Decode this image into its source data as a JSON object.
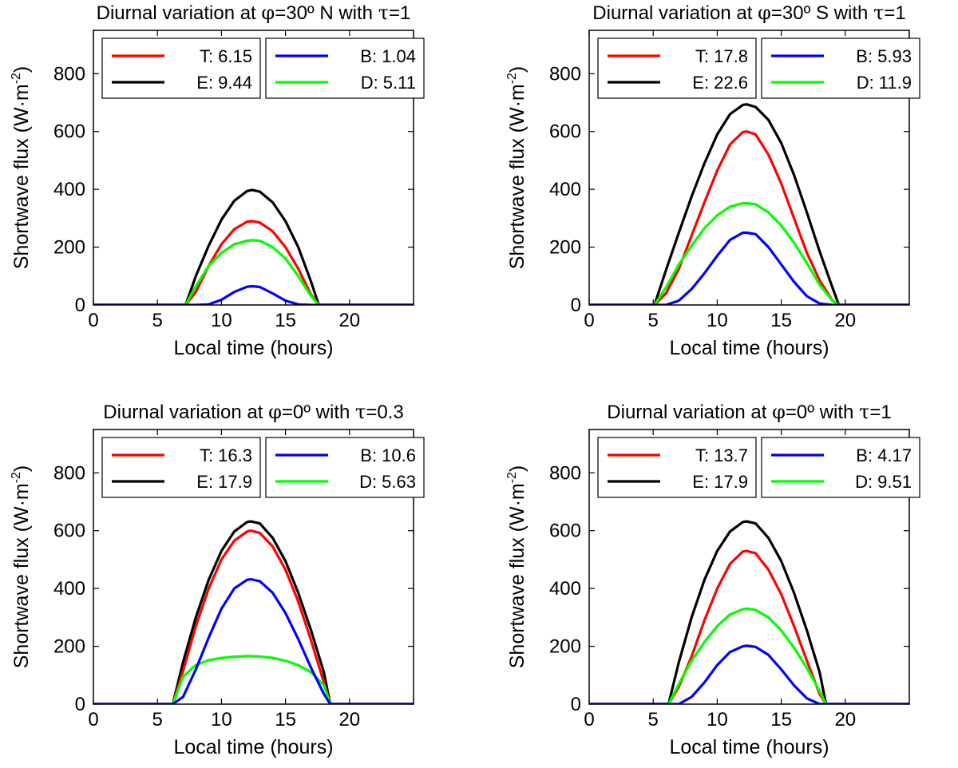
{
  "figure": {
    "background": "#ffffff"
  },
  "chart_data": [
    {
      "type": "line",
      "title": {
        "pre": "Diurnal variation at ",
        "phi": "φ",
        "mid": "=30º  N with ",
        "tau": "τ",
        "post": "=1"
      },
      "xlabel": "Local time (hours)",
      "ylabel": {
        "main": "Shortwave flux (W·m",
        "sup": "-2",
        "close": ")"
      },
      "xlim": [
        0,
        25
      ],
      "ylim": [
        0,
        950
      ],
      "xticks": [
        0,
        5,
        10,
        15,
        20
      ],
      "yticks": [
        0,
        200,
        400,
        600,
        800
      ],
      "x": [
        7.2,
        8,
        9,
        10,
        11,
        12,
        12.4,
        13,
        14,
        15,
        16,
        17,
        17.6
      ],
      "series": [
        {
          "name": "T",
          "legend": "T: 6.15",
          "color": "#ff0000",
          "values": [
            0,
            45,
            135,
            210,
            262,
            288,
            290,
            285,
            255,
            200,
            125,
            35,
            0
          ]
        },
        {
          "name": "E",
          "legend": "E: 9.44",
          "color": "#000000",
          "values": [
            0,
            100,
            205,
            295,
            360,
            394,
            398,
            392,
            355,
            290,
            200,
            80,
            0
          ]
        },
        {
          "name": "B",
          "legend": "B: 1.04",
          "color": "#0000ff",
          "values": [
            0,
            0,
            2,
            18,
            45,
            63,
            65,
            62,
            40,
            15,
            2,
            0,
            0
          ]
        },
        {
          "name": "D",
          "legend": "D: 5.11",
          "color": "#00ff00",
          "values": [
            0,
            65,
            135,
            180,
            210,
            222,
            224,
            222,
            200,
            160,
            100,
            30,
            0
          ]
        }
      ]
    },
    {
      "type": "line",
      "title": {
        "pre": "Diurnal variation at ",
        "phi": "φ",
        "mid": "=30º  S with ",
        "tau": "τ",
        "post": "=1"
      },
      "xlabel": "Local time (hours)",
      "ylabel": {
        "main": "Shortwave flux (W·m",
        "sup": "-2",
        "close": ")"
      },
      "xlim": [
        0,
        25
      ],
      "ylim": [
        0,
        950
      ],
      "xticks": [
        0,
        5,
        10,
        15,
        20
      ],
      "yticks": [
        0,
        200,
        400,
        600,
        800
      ],
      "x": [
        5.1,
        6,
        7,
        8,
        9,
        10,
        11,
        12,
        12.3,
        13,
        14,
        15,
        16,
        17,
        18,
        19,
        19.5
      ],
      "series": [
        {
          "name": "T",
          "legend": "T: 17.8",
          "color": "#ff0000",
          "values": [
            0,
            40,
            125,
            240,
            355,
            465,
            555,
            598,
            600,
            590,
            520,
            420,
            300,
            180,
            85,
            15,
            0
          ]
        },
        {
          "name": "E",
          "legend": "E: 22.6",
          "color": "#000000",
          "values": [
            0,
            120,
            250,
            375,
            490,
            590,
            660,
            692,
            694,
            685,
            640,
            560,
            450,
            320,
            185,
            60,
            0
          ]
        },
        {
          "name": "B",
          "legend": "B: 5.93",
          "color": "#0000ff",
          "values": [
            0,
            0,
            15,
            55,
            110,
            170,
            225,
            250,
            250,
            245,
            200,
            140,
            80,
            30,
            5,
            0,
            0
          ]
        },
        {
          "name": "D",
          "legend": "D: 11.9",
          "color": "#00ff00",
          "values": [
            0,
            60,
            140,
            205,
            265,
            310,
            340,
            352,
            352,
            348,
            320,
            275,
            215,
            145,
            70,
            15,
            0
          ]
        }
      ]
    },
    {
      "type": "line",
      "title": {
        "pre": "Diurnal variation at ",
        "phi": "φ",
        "mid": "=0º with ",
        "tau": "τ",
        "post": "=0.3"
      },
      "xlabel": "Local time (hours)",
      "ylabel": {
        "main": "Shortwave flux (W·m",
        "sup": "-2",
        "close": ")"
      },
      "xlim": [
        0,
        25
      ],
      "ylim": [
        0,
        950
      ],
      "xticks": [
        0,
        5,
        10,
        15,
        20
      ],
      "yticks": [
        0,
        200,
        400,
        600,
        800
      ],
      "x": [
        6.2,
        7,
        8,
        9,
        10,
        11,
        12,
        12.3,
        13,
        14,
        15,
        16,
        17,
        18,
        18.5
      ],
      "series": [
        {
          "name": "T",
          "legend": "T: 16.3",
          "color": "#ff0000",
          "values": [
            0,
            115,
            270,
            400,
            500,
            565,
            597,
            600,
            592,
            545,
            465,
            355,
            220,
            75,
            0
          ]
        },
        {
          "name": "E",
          "legend": "E: 17.9",
          "color": "#000000",
          "values": [
            0,
            145,
            300,
            430,
            530,
            597,
            630,
            632,
            625,
            575,
            495,
            385,
            255,
            110,
            0
          ]
        },
        {
          "name": "B",
          "legend": "B: 10.6",
          "color": "#0000ff",
          "values": [
            0,
            25,
            120,
            230,
            330,
            400,
            430,
            432,
            425,
            385,
            315,
            225,
            125,
            35,
            0
          ]
        },
        {
          "name": "D",
          "legend": "D: 5.63",
          "color": "#00ff00",
          "values": [
            0,
            95,
            135,
            152,
            160,
            164,
            166,
            166,
            165,
            160,
            150,
            135,
            110,
            65,
            0
          ]
        }
      ]
    },
    {
      "type": "line",
      "title": {
        "pre": "Diurnal variation at ",
        "phi": "φ",
        "mid": "=0º with ",
        "tau": "τ",
        "post": "=1"
      },
      "xlabel": "Local time (hours)",
      "ylabel": {
        "main": "Shortwave flux (W·m",
        "sup": "-2",
        "close": ")"
      },
      "xlim": [
        0,
        25
      ],
      "ylim": [
        0,
        950
      ],
      "xticks": [
        0,
        5,
        10,
        15,
        20
      ],
      "yticks": [
        0,
        200,
        400,
        600,
        800
      ],
      "x": [
        6.2,
        7,
        8,
        9,
        10,
        11,
        12,
        12.3,
        13,
        14,
        15,
        16,
        17,
        18,
        18.5
      ],
      "series": [
        {
          "name": "T",
          "legend": "T: 13.7",
          "color": "#ff0000",
          "values": [
            0,
            60,
            165,
            290,
            400,
            485,
            528,
            530,
            522,
            465,
            380,
            270,
            150,
            35,
            0
          ]
        },
        {
          "name": "E",
          "legend": "E: 17.9",
          "color": "#000000",
          "values": [
            0,
            145,
            300,
            430,
            530,
            597,
            630,
            632,
            625,
            575,
            495,
            385,
            255,
            110,
            0
          ]
        },
        {
          "name": "B",
          "legend": "B: 4.17",
          "color": "#0000ff",
          "values": [
            0,
            0,
            25,
            75,
            135,
            180,
            200,
            202,
            198,
            170,
            120,
            65,
            20,
            0,
            0
          ]
        },
        {
          "name": "D",
          "legend": "D: 9.51",
          "color": "#00ff00",
          "values": [
            0,
            70,
            150,
            215,
            270,
            310,
            328,
            330,
            326,
            300,
            255,
            195,
            125,
            45,
            0
          ]
        }
      ]
    }
  ]
}
